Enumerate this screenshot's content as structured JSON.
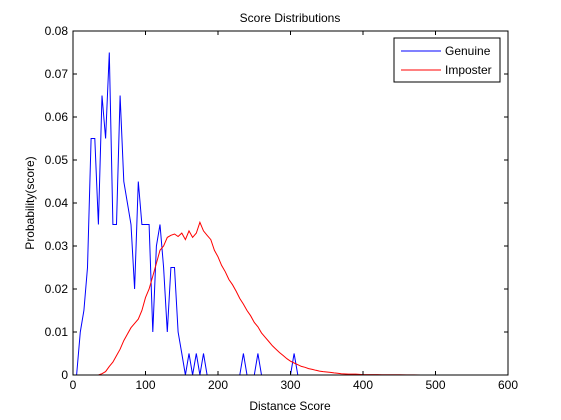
{
  "chart_data": {
    "type": "line",
    "title": "Score Distributions",
    "xlabel": "Distance Score",
    "ylabel": "Probability(score)",
    "xlim": [
      0,
      600
    ],
    "ylim": [
      0,
      0.08
    ],
    "xticks": [
      "0",
      "100",
      "200",
      "300",
      "400",
      "500",
      "600"
    ],
    "yticks": [
      "0",
      "0.01",
      "0.02",
      "0.03",
      "0.04",
      "0.05",
      "0.06",
      "0.07",
      "0.08"
    ],
    "grid": false,
    "legend_position": "top-right",
    "series": [
      {
        "name": "Genuine",
        "color": "#0000ff",
        "points": [
          [
            5,
            0
          ],
          [
            10,
            0.01
          ],
          [
            15,
            0.015
          ],
          [
            20,
            0.025
          ],
          [
            25,
            0.055
          ],
          [
            30,
            0.055
          ],
          [
            35,
            0.035
          ],
          [
            40,
            0.065
          ],
          [
            45,
            0.055
          ],
          [
            50,
            0.075
          ],
          [
            55,
            0.035
          ],
          [
            60,
            0.035
          ],
          [
            65,
            0.065
          ],
          [
            70,
            0.045
          ],
          [
            75,
            0.04
          ],
          [
            80,
            0.035
          ],
          [
            85,
            0.02
          ],
          [
            90,
            0.045
          ],
          [
            95,
            0.035
          ],
          [
            100,
            0.035
          ],
          [
            105,
            0.035
          ],
          [
            110,
            0.01
          ],
          [
            115,
            0.03
          ],
          [
            120,
            0.035
          ],
          [
            125,
            0.025
          ],
          [
            130,
            0.01
          ],
          [
            135,
            0.025
          ],
          [
            140,
            0.025
          ],
          [
            145,
            0.01
          ],
          [
            150,
            0.005
          ],
          [
            155,
            0
          ],
          [
            160,
            0.005
          ],
          [
            165,
            0
          ],
          [
            170,
            0.005
          ],
          [
            175,
            0
          ],
          [
            180,
            0.005
          ],
          [
            185,
            0
          ],
          [
            190,
            0
          ],
          [
            230,
            0
          ],
          [
            235,
            0.005
          ],
          [
            240,
            0
          ],
          [
            250,
            0
          ],
          [
            255,
            0.005
          ],
          [
            260,
            0
          ],
          [
            300,
            0
          ],
          [
            305,
            0.005
          ],
          [
            310,
            0
          ],
          [
            320,
            0
          ]
        ]
      },
      {
        "name": "Imposter",
        "color": "#ff0000",
        "points": [
          [
            35,
            0
          ],
          [
            40,
            0.0003
          ],
          [
            45,
            0.0008
          ],
          [
            50,
            0.002
          ],
          [
            55,
            0.003
          ],
          [
            60,
            0.0045
          ],
          [
            65,
            0.006
          ],
          [
            70,
            0.008
          ],
          [
            75,
            0.0095
          ],
          [
            80,
            0.011
          ],
          [
            85,
            0.012
          ],
          [
            90,
            0.013
          ],
          [
            95,
            0.015
          ],
          [
            100,
            0.018
          ],
          [
            105,
            0.02
          ],
          [
            110,
            0.023
          ],
          [
            115,
            0.026
          ],
          [
            120,
            0.029
          ],
          [
            125,
            0.03
          ],
          [
            130,
            0.032
          ],
          [
            135,
            0.0325
          ],
          [
            140,
            0.0328
          ],
          [
            145,
            0.0322
          ],
          [
            150,
            0.033
          ],
          [
            155,
            0.0315
          ],
          [
            160,
            0.0335
          ],
          [
            165,
            0.032
          ],
          [
            170,
            0.033
          ],
          [
            175,
            0.0355
          ],
          [
            180,
            0.0335
          ],
          [
            185,
            0.0325
          ],
          [
            190,
            0.0315
          ],
          [
            195,
            0.029
          ],
          [
            200,
            0.0275
          ],
          [
            205,
            0.0255
          ],
          [
            210,
            0.024
          ],
          [
            215,
            0.0222
          ],
          [
            220,
            0.021
          ],
          [
            225,
            0.0195
          ],
          [
            230,
            0.0178
          ],
          [
            235,
            0.0165
          ],
          [
            240,
            0.015
          ],
          [
            245,
            0.0138
          ],
          [
            250,
            0.0122
          ],
          [
            255,
            0.0112
          ],
          [
            260,
            0.0098
          ],
          [
            265,
            0.0088
          ],
          [
            270,
            0.0078
          ],
          [
            275,
            0.0068
          ],
          [
            280,
            0.006
          ],
          [
            285,
            0.0052
          ],
          [
            290,
            0.0045
          ],
          [
            295,
            0.0038
          ],
          [
            300,
            0.0032
          ],
          [
            305,
            0.0028
          ],
          [
            310,
            0.0024
          ],
          [
            315,
            0.002
          ],
          [
            320,
            0.0018
          ],
          [
            325,
            0.0015
          ],
          [
            330,
            0.0013
          ],
          [
            335,
            0.0011
          ],
          [
            340,
            0.0009
          ],
          [
            345,
            0.0008
          ],
          [
            350,
            0.0007
          ],
          [
            355,
            0.0006
          ],
          [
            360,
            0.0005
          ],
          [
            365,
            0.0004
          ],
          [
            370,
            0.0003
          ],
          [
            380,
            0.0002
          ],
          [
            390,
            0.0002
          ],
          [
            400,
            0.0001
          ],
          [
            410,
            0.0001
          ],
          [
            420,
            0.0001
          ],
          [
            430,
            5e-05
          ],
          [
            440,
            5e-05
          ],
          [
            450,
            5e-05
          ],
          [
            460,
            3e-05
          ],
          [
            470,
            2e-05
          ],
          [
            480,
            1e-05
          ],
          [
            500,
            1e-05
          ],
          [
            530,
            0
          ]
        ]
      }
    ]
  }
}
